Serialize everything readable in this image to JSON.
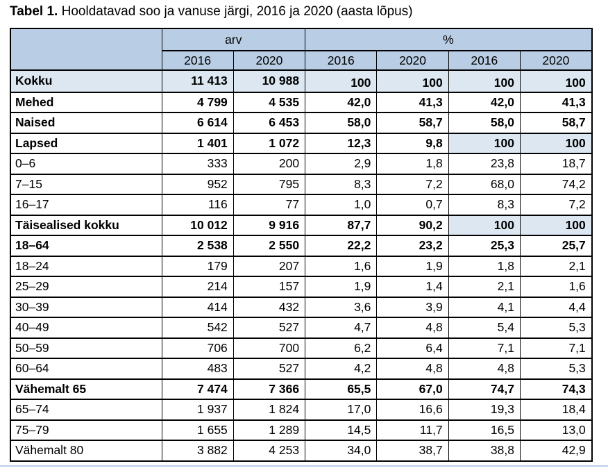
{
  "title": {
    "prefix": "Tabel 1.",
    "rest": " Hooldatavad soo ja vanuse järgi, 2016 ja 2020 (aasta lõpus)"
  },
  "colors": {
    "header_bg": "#b9cde5",
    "highlight_bg": "#dce7f1",
    "border": "#000000",
    "bottom_rule": "#b9cde5"
  },
  "table": {
    "group_headers": [
      {
        "label": "arv",
        "span": 2
      },
      {
        "label": "%",
        "span": 4
      }
    ],
    "year_headers": [
      "2016",
      "2020",
      "2016",
      "2020",
      "2016",
      "2020"
    ],
    "rows": [
      {
        "label": "Kokku",
        "bold": true,
        "shaded_row": true,
        "pct_bottom": true,
        "shaded_cells": [],
        "values": [
          "11 413",
          "10 988",
          "100",
          "100",
          "100",
          "100"
        ]
      },
      {
        "label": "Mehed",
        "bold": true,
        "shaded_row": false,
        "pct_bottom": false,
        "shaded_cells": [],
        "values": [
          "4 799",
          "4 535",
          "42,0",
          "41,3",
          "42,0",
          "41,3"
        ]
      },
      {
        "label": "Naised",
        "bold": true,
        "shaded_row": false,
        "pct_bottom": false,
        "shaded_cells": [],
        "values": [
          "6 614",
          "6 453",
          "58,0",
          "58,7",
          "58,0",
          "58,7"
        ]
      },
      {
        "label": "Lapsed",
        "bold": true,
        "shaded_row": false,
        "pct_bottom": false,
        "shaded_cells": [
          4,
          5
        ],
        "values": [
          "1 401",
          "1 072",
          "12,3",
          "9,8",
          "100",
          "100"
        ]
      },
      {
        "label": "0–6",
        "bold": false,
        "shaded_row": false,
        "pct_bottom": false,
        "shaded_cells": [],
        "values": [
          "333",
          "200",
          "2,9",
          "1,8",
          "23,8",
          "18,7"
        ]
      },
      {
        "label": "7–15",
        "bold": false,
        "shaded_row": false,
        "pct_bottom": false,
        "shaded_cells": [],
        "values": [
          "952",
          "795",
          "8,3",
          "7,2",
          "68,0",
          "74,2"
        ]
      },
      {
        "label": "16–17",
        "bold": false,
        "shaded_row": false,
        "pct_bottom": false,
        "shaded_cells": [],
        "values": [
          "116",
          "77",
          "1,0",
          "0,7",
          "8,3",
          "7,2"
        ]
      },
      {
        "label": "Täisealised kokku",
        "bold": true,
        "shaded_row": false,
        "pct_bottom": false,
        "shaded_cells": [
          4,
          5
        ],
        "values": [
          "10 012",
          "9 916",
          "87,7",
          "90,2",
          "100",
          "100"
        ]
      },
      {
        "label": "18–64",
        "bold": true,
        "shaded_row": false,
        "pct_bottom": false,
        "shaded_cells": [],
        "values": [
          "2 538",
          "2 550",
          "22,2",
          "23,2",
          "25,3",
          "25,7"
        ]
      },
      {
        "label": "18–24",
        "bold": false,
        "shaded_row": false,
        "pct_bottom": false,
        "shaded_cells": [],
        "values": [
          "179",
          "207",
          "1,6",
          "1,9",
          "1,8",
          "2,1"
        ]
      },
      {
        "label": "25–29",
        "bold": false,
        "shaded_row": false,
        "pct_bottom": false,
        "shaded_cells": [],
        "values": [
          "214",
          "157",
          "1,9",
          "1,4",
          "2,1",
          "1,6"
        ]
      },
      {
        "label": "30–39",
        "bold": false,
        "shaded_row": false,
        "pct_bottom": false,
        "shaded_cells": [],
        "values": [
          "414",
          "432",
          "3,6",
          "3,9",
          "4,1",
          "4,4"
        ]
      },
      {
        "label": "40–49",
        "bold": false,
        "shaded_row": false,
        "pct_bottom": false,
        "shaded_cells": [],
        "values": [
          "542",
          "527",
          "4,7",
          "4,8",
          "5,4",
          "5,3"
        ]
      },
      {
        "label": "50–59",
        "bold": false,
        "shaded_row": false,
        "pct_bottom": false,
        "shaded_cells": [],
        "values": [
          "706",
          "700",
          "6,2",
          "6,4",
          "7,1",
          "7,1"
        ]
      },
      {
        "label": "60–64",
        "bold": false,
        "shaded_row": false,
        "pct_bottom": false,
        "shaded_cells": [],
        "values": [
          "483",
          "527",
          "4,2",
          "4,8",
          "4,8",
          "5,3"
        ]
      },
      {
        "label": "Vähemalt 65",
        "bold": true,
        "shaded_row": false,
        "pct_bottom": false,
        "shaded_cells": [],
        "values": [
          "7 474",
          "7 366",
          "65,5",
          "67,0",
          "74,7",
          "74,3"
        ]
      },
      {
        "label": "65–74",
        "bold": false,
        "shaded_row": false,
        "pct_bottom": false,
        "shaded_cells": [],
        "values": [
          "1 937",
          "1 824",
          "17,0",
          "16,6",
          "19,3",
          "18,4"
        ]
      },
      {
        "label": "75–79",
        "bold": false,
        "shaded_row": false,
        "pct_bottom": false,
        "shaded_cells": [],
        "values": [
          "1 655",
          "1 289",
          "14,5",
          "11,7",
          "16,5",
          "13,0"
        ]
      },
      {
        "label": "Vähemalt 80",
        "bold": false,
        "shaded_row": false,
        "pct_bottom": false,
        "shaded_cells": [],
        "values": [
          "3 882",
          "4 253",
          "34,0",
          "38,7",
          "38,8",
          "42,9"
        ]
      }
    ]
  },
  "chart_data": {
    "type": "table",
    "title": "Tabel 1. Hooldatavad soo ja vanuse järgi, 2016 ja 2020 (aasta lõpus)",
    "columns": [
      "",
      "arv 2016",
      "arv 2020",
      "% 2016",
      "% 2020",
      "% 2016",
      "% 2020"
    ],
    "rows": [
      [
        "Kokku",
        "11 413",
        "10 988",
        "100",
        "100",
        "100",
        "100"
      ],
      [
        "Mehed",
        "4 799",
        "4 535",
        "42,0",
        "41,3",
        "42,0",
        "41,3"
      ],
      [
        "Naised",
        "6 614",
        "6 453",
        "58,0",
        "58,7",
        "58,0",
        "58,7"
      ],
      [
        "Lapsed",
        "1 401",
        "1 072",
        "12,3",
        "9,8",
        "100",
        "100"
      ],
      [
        "0–6",
        "333",
        "200",
        "2,9",
        "1,8",
        "23,8",
        "18,7"
      ],
      [
        "7–15",
        "952",
        "795",
        "8,3",
        "7,2",
        "68,0",
        "74,2"
      ],
      [
        "16–17",
        "116",
        "77",
        "1,0",
        "0,7",
        "8,3",
        "7,2"
      ],
      [
        "Täisealised kokku",
        "10 012",
        "9 916",
        "87,7",
        "90,2",
        "100",
        "100"
      ],
      [
        "18–64",
        "2 538",
        "2 550",
        "22,2",
        "23,2",
        "25,3",
        "25,7"
      ],
      [
        "18–24",
        "179",
        "207",
        "1,6",
        "1,9",
        "1,8",
        "2,1"
      ],
      [
        "25–29",
        "214",
        "157",
        "1,9",
        "1,4",
        "2,1",
        "1,6"
      ],
      [
        "30–39",
        "414",
        "432",
        "3,6",
        "3,9",
        "4,1",
        "4,4"
      ],
      [
        "40–49",
        "542",
        "527",
        "4,7",
        "4,8",
        "5,4",
        "5,3"
      ],
      [
        "50–59",
        "706",
        "700",
        "6,2",
        "6,4",
        "7,1",
        "7,1"
      ],
      [
        "60–64",
        "483",
        "527",
        "4,2",
        "4,8",
        "4,8",
        "5,3"
      ],
      [
        "Vähemalt 65",
        "7 474",
        "7 366",
        "65,5",
        "67,0",
        "74,7",
        "74,3"
      ],
      [
        "65–74",
        "1 937",
        "1 824",
        "17,0",
        "16,6",
        "19,3",
        "18,4"
      ],
      [
        "75–79",
        "1 655",
        "1 289",
        "14,5",
        "11,7",
        "16,5",
        "13,0"
      ],
      [
        "Vähemalt 80",
        "3 882",
        "4 253",
        "34,0",
        "38,7",
        "38,8",
        "42,9"
      ]
    ]
  }
}
